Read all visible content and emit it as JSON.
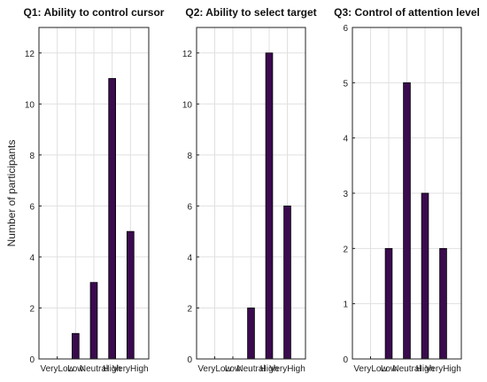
{
  "ylabel": "Number of participants",
  "bar_color": "#3b0a4f",
  "grid_color": "#e0e0e0",
  "chart_data": [
    {
      "type": "bar",
      "title": "Q1: Ability to control cursor",
      "categories": [
        "VeryLow",
        "Low",
        "Neutral",
        "High",
        "VeryHigh"
      ],
      "values": [
        0,
        1,
        3,
        11,
        5
      ],
      "ylim": [
        0,
        13
      ],
      "yticks": [
        0,
        2,
        4,
        6,
        8,
        10,
        12
      ],
      "ylabel": "Number of participants",
      "grid": true
    },
    {
      "type": "bar",
      "title": "Q2: Ability to select target",
      "categories": [
        "VeryLow",
        "Low",
        "Neutral",
        "High",
        "VeryHigh"
      ],
      "values": [
        0,
        0,
        2,
        12,
        6
      ],
      "ylim": [
        0,
        13
      ],
      "yticks": [
        0,
        2,
        4,
        6,
        8,
        10,
        12
      ],
      "grid": true
    },
    {
      "type": "bar",
      "title": "Q3: Control of attention level",
      "categories": [
        "VeryLow",
        "Low",
        "Neutral",
        "High",
        "VeryHigh"
      ],
      "values": [
        0,
        2,
        5,
        3,
        2
      ],
      "ylim": [
        0,
        6
      ],
      "yticks": [
        0,
        1,
        2,
        3,
        4,
        5,
        6
      ],
      "grid": true
    }
  ]
}
